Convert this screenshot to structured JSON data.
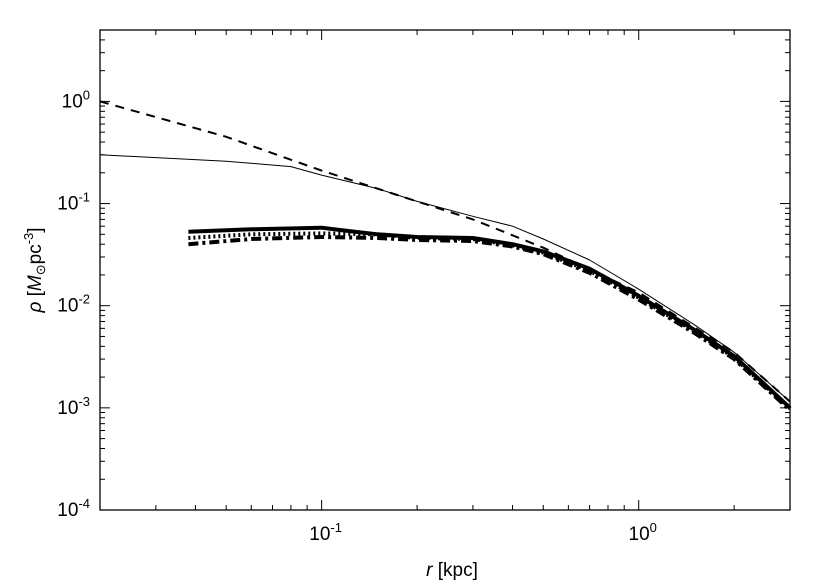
{
  "chart_data": {
    "type": "line",
    "title": "",
    "xlabel": {
      "symbol": "r",
      "unit": " [kpc]"
    },
    "ylabel": {
      "symbol": "ρ",
      "unit_open": " [",
      "mass_symbol": "M",
      "sun_symbol": "⊙",
      "unit_rest": "pc",
      "unit_exp": "-3",
      "unit_close": "]"
    },
    "xscale": "log",
    "yscale": "log",
    "xlim": [
      0.02,
      3.0
    ],
    "ylim": [
      0.0001,
      5.0
    ],
    "grid": false,
    "legend": "none",
    "x_ticks": [
      {
        "base": "10",
        "exp": "-1",
        "value": 0.1
      },
      {
        "base": "10",
        "exp": "0",
        "value": 1.0
      }
    ],
    "y_ticks": [
      {
        "base": "10",
        "exp": "0",
        "value": 1.0
      },
      {
        "base": "10",
        "exp": "-1",
        "value": 0.1
      },
      {
        "base": "10",
        "exp": "-2",
        "value": 0.01
      },
      {
        "base": "10",
        "exp": "-3",
        "value": 0.001
      },
      {
        "base": "10",
        "exp": "-4",
        "value": 0.0001
      }
    ],
    "series": [
      {
        "style": "dashed",
        "x": [
          0.02,
          0.05,
          0.1,
          0.2,
          0.3,
          0.5,
          1.0,
          2.0,
          3.0
        ],
        "y": [
          1.0,
          0.45,
          0.21,
          0.105,
          0.07,
          0.037,
          0.0135,
          0.0035,
          0.00115
        ]
      },
      {
        "style": "thin-solid",
        "x": [
          0.02,
          0.05,
          0.08,
          0.1,
          0.15,
          0.2,
          0.3,
          0.4,
          0.5,
          0.7,
          1.0,
          1.5,
          2.0,
          3.0
        ],
        "y": [
          0.3,
          0.26,
          0.23,
          0.19,
          0.14,
          0.105,
          0.075,
          0.06,
          0.045,
          0.028,
          0.0145,
          0.0065,
          0.0035,
          0.00115
        ]
      },
      {
        "style": "thick-solid",
        "x": [
          0.038,
          0.06,
          0.1,
          0.115,
          0.15,
          0.2,
          0.3,
          0.4,
          0.5,
          0.7,
          1.0,
          1.5,
          2.0,
          3.0
        ],
        "y": [
          0.053,
          0.056,
          0.058,
          0.055,
          0.05,
          0.047,
          0.046,
          0.04,
          0.034,
          0.023,
          0.0125,
          0.0058,
          0.0032,
          0.001
        ]
      },
      {
        "style": "thick-dotted",
        "x": [
          0.038,
          0.06,
          0.1,
          0.15,
          0.2,
          0.3,
          0.4,
          0.5,
          0.7,
          1.0,
          1.5,
          2.0,
          3.0
        ],
        "y": [
          0.046,
          0.05,
          0.051,
          0.05,
          0.046,
          0.045,
          0.039,
          0.033,
          0.022,
          0.012,
          0.0056,
          0.0031,
          0.00098
        ]
      },
      {
        "style": "thick-dashdot",
        "x": [
          0.038,
          0.06,
          0.1,
          0.15,
          0.2,
          0.3,
          0.4,
          0.5,
          0.7,
          1.0,
          1.5,
          2.0,
          3.0
        ],
        "y": [
          0.04,
          0.045,
          0.047,
          0.046,
          0.044,
          0.043,
          0.038,
          0.032,
          0.021,
          0.0115,
          0.0054,
          0.003,
          0.00095
        ]
      }
    ]
  }
}
